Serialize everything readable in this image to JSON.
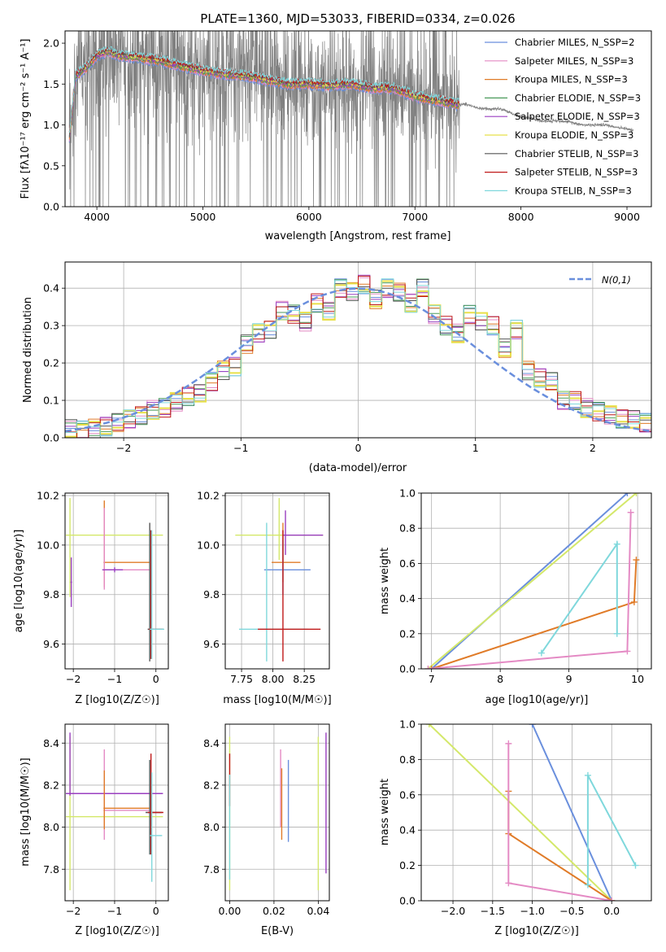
{
  "chart_data": [
    {
      "id": "spectrum",
      "type": "line",
      "title": "PLATE=1360, MJD=53033, FIBERID=0334, z=0.026",
      "xlabel": "wavelength [Angstrom, rest frame]",
      "ylabel": "Flux [fλ10⁻¹⁷ erg cm⁻² s⁻¹ A⁻¹]",
      "xlim": [
        3700,
        9230
      ],
      "ylim": [
        0,
        2.15
      ],
      "xticks": [
        4000,
        5000,
        6000,
        7000,
        8000,
        9000
      ],
      "yticks": [
        0.0,
        0.5,
        1.0,
        1.5,
        2.0
      ],
      "grid": false,
      "legend_position": "top-right",
      "data_envelope": {
        "x": [
          3740,
          3800,
          3900,
          4000,
          4100,
          4200,
          4400,
          4600,
          4800,
          5000,
          5200,
          5400,
          5600,
          5800,
          6000,
          6200,
          6400,
          6600,
          6800,
          7000,
          7200,
          7400,
          7500,
          7600,
          7800,
          8000,
          8200,
          8400,
          8600,
          8800,
          9000,
          9060
        ],
        "y": [
          0.85,
          1.6,
          1.7,
          1.85,
          1.9,
          1.85,
          1.82,
          1.78,
          1.72,
          1.66,
          1.62,
          1.6,
          1.55,
          1.5,
          1.5,
          1.48,
          1.5,
          1.45,
          1.45,
          1.35,
          1.3,
          1.25,
          1.25,
          1.2,
          1.2,
          1.1,
          1.05,
          1.05,
          1.0,
          1.0,
          0.95,
          0.93
        ]
      },
      "models_end_x": 7420,
      "series": [
        {
          "name": "Chabrier MILES, N_SSP=2",
          "color": "#6a8fdd"
        },
        {
          "name": "Salpeter MILES, N_SSP=3",
          "color": "#e48ac4"
        },
        {
          "name": "Kroupa MILES, N_SSP=3",
          "color": "#e07b28"
        },
        {
          "name": "Chabrier ELODIE, N_SSP=3",
          "color": "#4a9a5a"
        },
        {
          "name": "Salpeter ELODIE, N_SSP=3",
          "color": "#9a3fc0"
        },
        {
          "name": "Kroupa ELODIE, N_SSP=3",
          "color": "#e8e04a"
        },
        {
          "name": "Chabrier STELIB, N_SSP=3",
          "color": "#555555"
        },
        {
          "name": "Salpeter STELIB, N_SSP=3",
          "color": "#c01a1a"
        },
        {
          "name": "Kroupa STELIB, N_SSP=3",
          "color": "#7fd8dc"
        }
      ]
    },
    {
      "id": "residuals",
      "type": "step",
      "xlabel": "(data-model)/error",
      "ylabel": "Normed distribution",
      "xlim": [
        -2.5,
        2.5
      ],
      "ylim": [
        0,
        0.47
      ],
      "xticks": [
        -2,
        -1,
        0,
        1,
        2
      ],
      "yticks": [
        0.0,
        0.1,
        0.2,
        0.3,
        0.4
      ],
      "grid": true,
      "legend": {
        "label": "N(0,1)",
        "position": "top-right",
        "color": "#6a8fdd"
      },
      "bin_width": 0.1,
      "bin_start": -2.5,
      "histogram": [
        0.025,
        0.02,
        0.025,
        0.03,
        0.04,
        0.05,
        0.06,
        0.075,
        0.08,
        0.095,
        0.11,
        0.12,
        0.15,
        0.18,
        0.19,
        0.25,
        0.28,
        0.29,
        0.34,
        0.33,
        0.31,
        0.36,
        0.34,
        0.4,
        0.39,
        0.41,
        0.37,
        0.4,
        0.39,
        0.36,
        0.4,
        0.33,
        0.3,
        0.28,
        0.33,
        0.31,
        0.3,
        0.24,
        0.29,
        0.18,
        0.16,
        0.15,
        0.1,
        0.1,
        0.08,
        0.07,
        0.06,
        0.05,
        0.05,
        0.04
      ]
    },
    {
      "id": "age-vs-Z",
      "type": "errorbar",
      "xlabel": "Z [log10(Z/Z☉)]",
      "ylabel": "age  [log10(age/yr)]",
      "xlim": [
        -2.2,
        0.3
      ],
      "ylim": [
        9.5,
        10.21
      ],
      "xticks": [
        -2,
        -1,
        0
      ],
      "yticks": [
        9.6,
        9.8,
        10.0,
        10.2
      ],
      "points": [
        {
          "x": -2.08,
          "y": 10.04,
          "xerr": [
            0.1,
            2.25
          ],
          "yerr": [
            0.25,
            0.15
          ],
          "color": "#d4e86a"
        },
        {
          "x": -2.05,
          "y": 9.85,
          "xerr": [
            0.02,
            0.02
          ],
          "yerr": [
            0.1,
            0.1
          ],
          "color": "#9a3fc0"
        },
        {
          "x": -1.25,
          "y": 9.93,
          "xerr": [
            0.02,
            1.1
          ],
          "yerr": [
            0.1,
            0.25
          ],
          "color": "#e07b28"
        },
        {
          "x": -1.25,
          "y": 9.9,
          "xerr": [
            0.02,
            1.1
          ],
          "yerr": [
            0.08,
            0.25
          ],
          "color": "#e48ac4"
        },
        {
          "x": -1.0,
          "y": 9.9,
          "xerr": [
            0.3,
            0.2
          ],
          "yerr": [
            0.01,
            0.01
          ],
          "color": "#9a3fc0"
        },
        {
          "x": -0.15,
          "y": 9.66,
          "xerr": [
            0.05,
            0.3
          ],
          "yerr": [
            0.13,
            0.43
          ],
          "color": "#555555"
        },
        {
          "x": -0.12,
          "y": 9.66,
          "xerr": [
            0.05,
            0.3
          ],
          "yerr": [
            0.12,
            0.4
          ],
          "color": "#c01a1a"
        },
        {
          "x": -0.1,
          "y": 9.66,
          "xerr": [
            0.05,
            0.3
          ],
          "yerr": [
            0.12,
            0.4
          ],
          "color": "#7fd8dc"
        }
      ]
    },
    {
      "id": "age-vs-mass",
      "type": "errorbar",
      "xlabel": "mass [log10(M/M☉)]",
      "xlim": [
        7.62,
        8.45
      ],
      "ylim": [
        9.5,
        10.21
      ],
      "xticks": [
        7.75,
        8.0,
        8.25
      ],
      "yticks": [
        9.6,
        9.8,
        10.0,
        10.2
      ],
      "points": [
        {
          "x": 8.05,
          "y": 10.04,
          "xerr": [
            0.35,
            0.35
          ],
          "yerr": [
            0.1,
            0.15
          ],
          "color": "#d4e86a"
        },
        {
          "x": 8.1,
          "y": 10.04,
          "xerr": [
            0.02,
            0.3
          ],
          "yerr": [
            0.08,
            0.1
          ],
          "color": "#9a3fc0"
        },
        {
          "x": 8.08,
          "y": 9.93,
          "xerr": [
            0.09,
            0.14
          ],
          "yerr": [
            0.08,
            0.16
          ],
          "color": "#e07b28"
        },
        {
          "x": 8.08,
          "y": 9.9,
          "xerr": [
            0.15,
            0.22
          ],
          "yerr": [
            0.1,
            0.12
          ],
          "color": "#6a8fdd"
        },
        {
          "x": 7.95,
          "y": 9.66,
          "xerr": [
            0.22,
            0.33
          ],
          "yerr": [
            0.13,
            0.43
          ],
          "color": "#7fd8dc"
        },
        {
          "x": 8.08,
          "y": 9.66,
          "xerr": [
            0.2,
            0.3
          ],
          "yerr": [
            0.13,
            0.4
          ],
          "color": "#c01a1a"
        }
      ]
    },
    {
      "id": "mass-weight-vs-age",
      "type": "line",
      "xlabel": "age  [log10(age/yr)]",
      "ylabel": "mass weight",
      "xlim": [
        6.85,
        10.2
      ],
      "ylim": [
        0,
        1.0
      ],
      "xticks": [
        7,
        8,
        9,
        10
      ],
      "yticks": [
        0.0,
        0.2,
        0.4,
        0.6,
        0.8,
        1.0
      ],
      "grid": true,
      "series": [
        {
          "color": "#6a8fdd",
          "x": [
            7.0,
            9.85
          ],
          "y": [
            0.0,
            1.0
          ]
        },
        {
          "color": "#d4e86a",
          "x": [
            6.95,
            9.98
          ],
          "y": [
            0.0,
            1.0
          ]
        },
        {
          "color": "#e07b28",
          "x": [
            7.0,
            9.95,
            9.98
          ],
          "y": [
            0.0,
            0.38,
            0.62
          ]
        },
        {
          "color": "#e48ac4",
          "x": [
            6.95,
            9.85,
            9.9
          ],
          "y": [
            0.0,
            0.1,
            0.89
          ]
        },
        {
          "color": "#7fd8dc",
          "x": [
            8.6,
            9.7,
            9.7
          ],
          "y": [
            0.09,
            0.71,
            0.2
          ]
        }
      ]
    },
    {
      "id": "mass-vs-Z",
      "type": "errorbar",
      "xlabel": "Z [log10(Z/Z☉)]",
      "ylabel": "mass [log10(M/M☉)]",
      "xlim": [
        -2.2,
        0.3
      ],
      "ylim": [
        7.65,
        8.49
      ],
      "xticks": [
        -2,
        -1,
        0
      ],
      "yticks": [
        7.8,
        8.0,
        8.2,
        8.4
      ],
      "points": [
        {
          "x": -2.08,
          "y": 8.05,
          "xerr": [
            0.1,
            2.25
          ],
          "yerr": [
            0.35,
            0.38
          ],
          "color": "#d4e86a"
        },
        {
          "x": -2.08,
          "y": 8.16,
          "xerr": [
            0.1,
            2.25
          ],
          "yerr": [
            0.01,
            0.29
          ],
          "color": "#9a3fc0"
        },
        {
          "x": -1.25,
          "y": 8.08,
          "xerr": [
            0.02,
            1.1
          ],
          "yerr": [
            0.14,
            0.29
          ],
          "color": "#e48ac4"
        },
        {
          "x": -1.25,
          "y": 8.09,
          "xerr": [
            0.02,
            1.1
          ],
          "yerr": [
            0.1,
            0.18
          ],
          "color": "#e07b28"
        },
        {
          "x": -0.15,
          "y": 8.07,
          "xerr": [
            0.1,
            0.3
          ],
          "yerr": [
            0.2,
            0.25
          ],
          "color": "#555555"
        },
        {
          "x": -0.12,
          "y": 8.07,
          "xerr": [
            0.08,
            0.3
          ],
          "yerr": [
            0.2,
            0.28
          ],
          "color": "#c01a1a"
        },
        {
          "x": -0.1,
          "y": 7.96,
          "xerr": [
            0.05,
            0.25
          ],
          "yerr": [
            0.22,
            0.3
          ],
          "color": "#7fd8dc"
        }
      ]
    },
    {
      "id": "mass-vs-EBV",
      "type": "errorbar",
      "xlabel": "E(B-V)",
      "xlim": [
        -0.002,
        0.045
      ],
      "ylim": [
        7.65,
        8.49
      ],
      "xticks": [
        0.0,
        0.02,
        0.04
      ],
      "yticks": [
        7.8,
        8.0,
        8.2,
        8.4
      ],
      "points": [
        {
          "x": 0.0,
          "y": 8.06,
          "xerr": [
            0,
            0
          ],
          "yerr": [
            0.36,
            0.37
          ],
          "color": "#d4e86a"
        },
        {
          "x": 0.0,
          "y": 8.2,
          "xerr": [
            0,
            0
          ],
          "yerr": [
            0.1,
            0.15
          ],
          "color": "#c01a1a"
        },
        {
          "x": 0.0,
          "y": 7.95,
          "xerr": [
            0,
            0
          ],
          "yerr": [
            0.2,
            0.3
          ],
          "color": "#7fd8dc"
        },
        {
          "x": 0.023,
          "y": 8.1,
          "xerr": [
            0,
            0
          ],
          "yerr": [
            0.1,
            0.27
          ],
          "color": "#e48ac4"
        },
        {
          "x": 0.0235,
          "y": 8.1,
          "xerr": [
            0,
            0
          ],
          "yerr": [
            0.16,
            0.18
          ],
          "color": "#e07b28"
        },
        {
          "x": 0.0265,
          "y": 8.1,
          "xerr": [
            0,
            0
          ],
          "yerr": [
            0.17,
            0.22
          ],
          "color": "#6a8fdd"
        },
        {
          "x": 0.04,
          "y": 8.05,
          "xerr": [
            0,
            0
          ],
          "yerr": [
            0.35,
            0.38
          ],
          "color": "#d4e86a"
        },
        {
          "x": 0.0435,
          "y": 8.12,
          "xerr": [
            0,
            0
          ],
          "yerr": [
            0.34,
            0.33
          ],
          "color": "#9a3fc0"
        }
      ]
    },
    {
      "id": "mass-weight-vs-Z",
      "type": "line",
      "xlabel": "Z [log10(Z/Z☉)]",
      "ylabel": "mass weight",
      "xlim": [
        -2.4,
        0.5
      ],
      "ylim": [
        0,
        1.0
      ],
      "xticks": [
        -2.0,
        -1.5,
        -1.0,
        -0.5,
        0.0
      ],
      "yticks": [
        0.0,
        0.2,
        0.4,
        0.6,
        0.8,
        1.0
      ],
      "grid": true,
      "series": [
        {
          "color": "#6a8fdd",
          "x": [
            -1.0,
            0.0
          ],
          "y": [
            1.0,
            0.0
          ]
        },
        {
          "color": "#d4e86a",
          "x": [
            -2.3,
            0.0
          ],
          "y": [
            1.0,
            0.0
          ]
        },
        {
          "color": "#e07b28",
          "x": [
            -1.3,
            -1.3,
            0.0
          ],
          "y": [
            0.62,
            0.38,
            0.0
          ]
        },
        {
          "color": "#e48ac4",
          "x": [
            -1.3,
            -1.3,
            0.0
          ],
          "y": [
            0.89,
            0.1,
            0.0
          ]
        },
        {
          "color": "#7fd8dc",
          "x": [
            0.3,
            -0.3,
            -0.3
          ],
          "y": [
            0.2,
            0.71,
            0.09
          ]
        }
      ]
    }
  ]
}
